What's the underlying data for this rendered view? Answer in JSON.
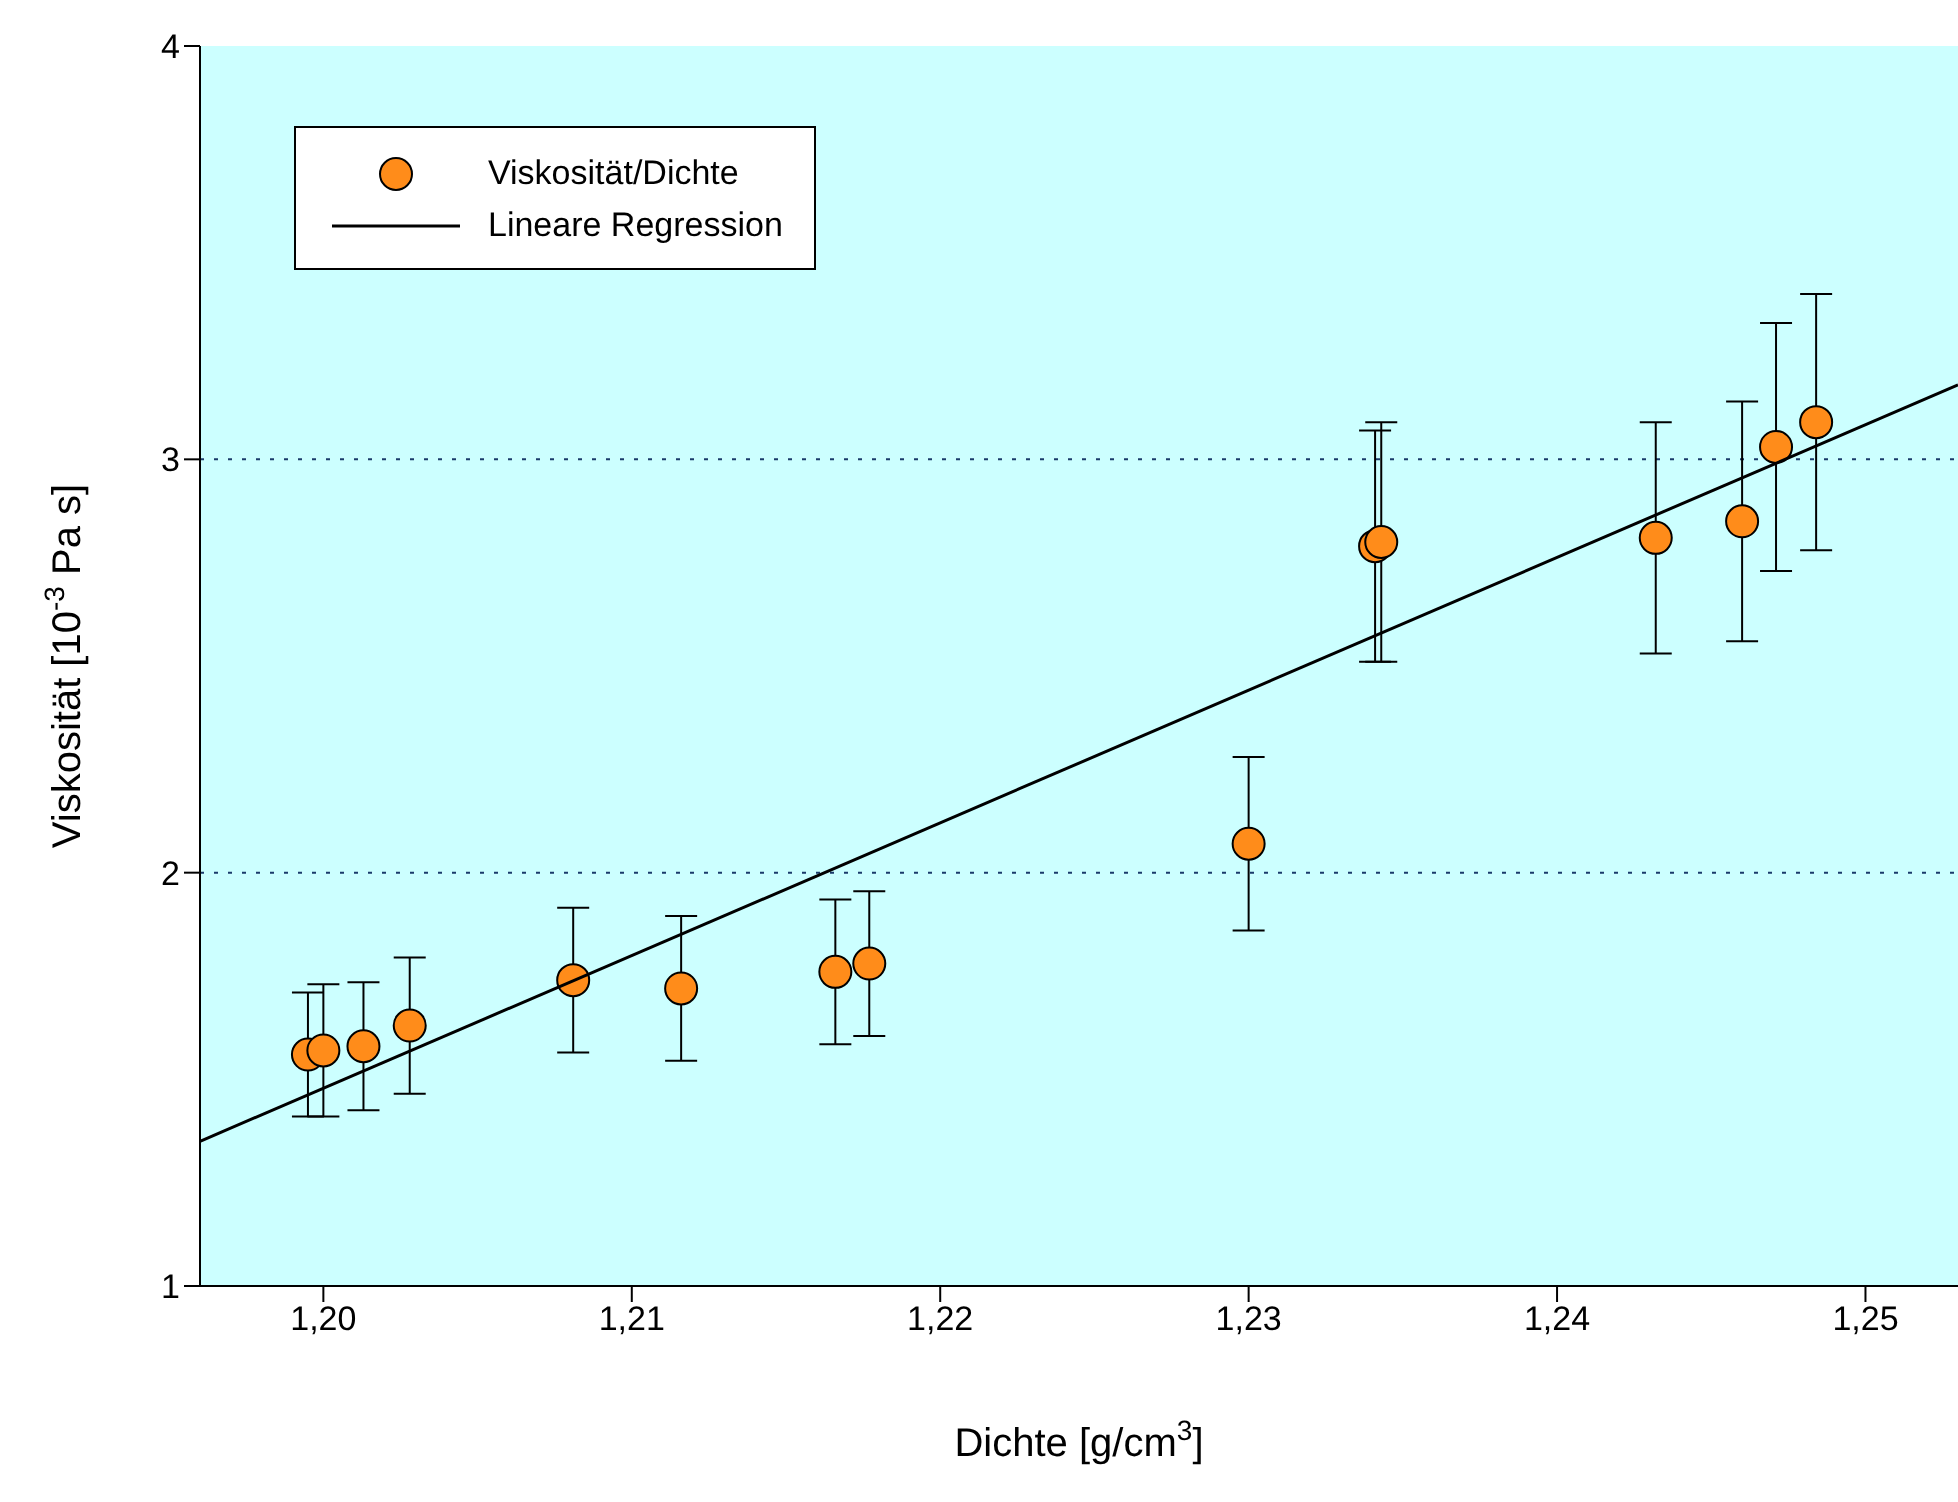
{
  "chart_data": {
    "type": "scatter",
    "xlabel": "Dichte [g/cm$^{3}$]",
    "ylabel": "Viskosität [10$^{-3}$ Pa s]",
    "xlim": [
      1.196,
      1.253
    ],
    "xticks": [
      {
        "value": 1.2,
        "label": "1,20"
      },
      {
        "value": 1.21,
        "label": "1,21"
      },
      {
        "value": 1.22,
        "label": "1,22"
      },
      {
        "value": 1.23,
        "label": "1,23"
      },
      {
        "value": 1.24,
        "label": "1,24"
      },
      {
        "value": 1.25,
        "label": "1,25"
      }
    ],
    "ylim": [
      1,
      4
    ],
    "yticks": [
      1,
      2,
      3,
      4
    ],
    "grid": "y",
    "legend": "top left",
    "marker": "circle",
    "series": [
      {
        "name": "Viskosität/Dichte",
        "color": "#ff8c1a",
        "x": [
          1.1995,
          1.2,
          1.2013,
          1.2028,
          1.2081,
          1.2116,
          1.2166,
          1.2177,
          1.23,
          1.2341,
          1.2343,
          1.2432,
          1.246,
          1.2471,
          1.2484
        ],
        "values": [
          1.56,
          1.57,
          1.58,
          1.63,
          1.74,
          1.72,
          1.76,
          1.78,
          2.07,
          2.79,
          2.8,
          2.81,
          2.85,
          3.03,
          3.09
        ],
        "errors": [
          0.15,
          0.16,
          0.155,
          0.165,
          0.175,
          0.175,
          0.175,
          0.175,
          0.21,
          0.28,
          0.29,
          0.28,
          0.29,
          0.3,
          0.31
        ]
      },
      {
        "name": "Lineare Regression",
        "type": "line",
        "marker": "none",
        "color": "#000000",
        "x": [
          1.196,
          1.253
        ],
        "values": [
          1.35,
          3.18
        ]
      }
    ]
  }
}
